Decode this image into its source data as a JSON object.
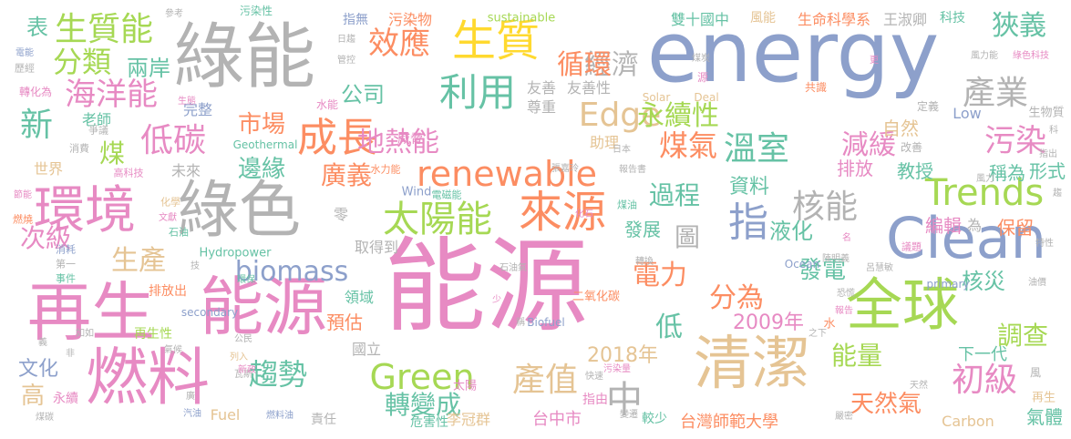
{
  "palette": {
    "pink": "#e78ac3",
    "green": "#a6d854",
    "blue": "#8da0cb",
    "gray": "#b3b3b3",
    "orange": "#fc8d62",
    "yellow": "#ffd92f",
    "tan": "#e5c494",
    "teal": "#66c2a5"
  },
  "words": [
    {
      "text": "能源",
      "color": "#e78ac3"
    },
    {
      "text": "energy",
      "color": "#8da0cb"
    },
    {
      "text": "綠能",
      "color": "#b3b3b3"
    },
    {
      "text": "再生",
      "color": "#e78ac3"
    },
    {
      "text": "能源",
      "color": "#e78ac3"
    },
    {
      "text": "燃料",
      "color": "#e78ac3"
    },
    {
      "text": "綠色",
      "color": "#b3b3b3"
    },
    {
      "text": "環境",
      "color": "#e78ac3"
    },
    {
      "text": "Clean",
      "color": "#8da0cb"
    },
    {
      "text": "清潔",
      "color": "#e5c494"
    },
    {
      "text": "全球",
      "color": "#a6d854"
    },
    {
      "text": "生質",
      "color": "#ffd92f"
    },
    {
      "text": "來源",
      "color": "#fc8d62"
    },
    {
      "text": "renewable",
      "color": "#fc8d62"
    },
    {
      "text": "Trends",
      "color": "#a6d854"
    },
    {
      "text": "Green",
      "color": "#a6d854"
    },
    {
      "text": "biomass",
      "color": "#8da0cb"
    },
    {
      "text": "成長",
      "color": "#fc8d62"
    },
    {
      "text": "利用",
      "color": "#66c2a5"
    },
    {
      "text": "太陽能",
      "color": "#a6d854"
    },
    {
      "text": "生質能",
      "color": "#a6d854"
    },
    {
      "text": "海洋能",
      "color": "#e78ac3"
    },
    {
      "text": "分類",
      "color": "#a6d854"
    },
    {
      "text": "效應",
      "color": "#fc8d62"
    },
    {
      "text": "低碳",
      "color": "#e78ac3"
    },
    {
      "text": "產業",
      "color": "#b3b3b3"
    },
    {
      "text": "狹義",
      "color": "#66c2a5"
    },
    {
      "text": "污染",
      "color": "#e78ac3"
    },
    {
      "text": "溫室",
      "color": "#66c2a5"
    },
    {
      "text": "Edge",
      "color": "#e5c494"
    },
    {
      "text": "地熱能",
      "color": "#e78ac3"
    },
    {
      "text": "核能",
      "color": "#b3b3b3"
    },
    {
      "text": "減緩",
      "color": "#e78ac3"
    },
    {
      "text": "產值",
      "color": "#e5c494"
    },
    {
      "text": "初級",
      "color": "#e78ac3"
    },
    {
      "text": "趨勢",
      "color": "#66c2a5"
    },
    {
      "text": "天然氣",
      "color": "#fc8d62"
    },
    {
      "text": "調查",
      "color": "#a6d854"
    },
    {
      "text": "能量",
      "color": "#a6d854"
    },
    {
      "text": "經濟",
      "color": "#b3b3b3"
    },
    {
      "text": "循環",
      "color": "#fc8d62"
    },
    {
      "text": "永續性",
      "color": "#a6d854"
    },
    {
      "text": "煤氣",
      "color": "#fc8d62"
    },
    {
      "text": "廣義",
      "color": "#fc8d62"
    },
    {
      "text": "市場",
      "color": "#fc8d62"
    },
    {
      "text": "邊緣",
      "color": "#66c2a5"
    },
    {
      "text": "過程",
      "color": "#66c2a5"
    },
    {
      "text": "分為",
      "color": "#fc8d62"
    },
    {
      "text": "電力",
      "color": "#fc8d62"
    },
    {
      "text": "轉變成",
      "color": "#66c2a5"
    },
    {
      "text": "公司",
      "color": "#66c2a5"
    },
    {
      "text": "新",
      "color": "#66c2a5"
    },
    {
      "text": "煤",
      "color": "#a6d854"
    },
    {
      "text": "中",
      "color": "#b3b3b3"
    },
    {
      "text": "指",
      "color": "#8da0cb"
    },
    {
      "text": "生產",
      "color": "#e5c494"
    },
    {
      "text": "次級",
      "color": "#e78ac3"
    },
    {
      "text": "兩岸",
      "color": "#66c2a5"
    },
    {
      "text": "表",
      "color": "#66c2a5"
    },
    {
      "text": "高",
      "color": "#e5c494"
    },
    {
      "text": "文化",
      "color": "#8da0cb"
    },
    {
      "text": "液化",
      "color": "#66c2a5"
    },
    {
      "text": "發電",
      "color": "#66c2a5"
    },
    {
      "text": "核災",
      "color": "#66c2a5"
    },
    {
      "text": "2009年",
      "color": "#e78ac3"
    },
    {
      "text": "2018年",
      "color": "#e5c494"
    },
    {
      "text": "低",
      "color": "#66c2a5"
    },
    {
      "text": "圖",
      "color": "#b3b3b3"
    },
    {
      "text": "發展",
      "color": "#66c2a5"
    },
    {
      "text": "資料",
      "color": "#66c2a5"
    },
    {
      "text": "預估",
      "color": "#fc8d62"
    },
    {
      "text": "Fuel",
      "color": "#e5c494"
    },
    {
      "text": "Carbon",
      "color": "#e5c494"
    },
    {
      "text": "Low",
      "color": "#8da0cb"
    },
    {
      "text": "自然",
      "color": "#e5c494"
    },
    {
      "text": "教授",
      "color": "#66c2a5"
    },
    {
      "text": "排放",
      "color": "#e78ac3"
    },
    {
      "text": "稱為",
      "color": "#66c2a5"
    },
    {
      "text": "形式",
      "color": "#66c2a5"
    },
    {
      "text": "編輯",
      "color": "#e78ac3"
    },
    {
      "text": "保留",
      "color": "#fc8d62"
    },
    {
      "text": "為",
      "color": "#b3b3b3"
    },
    {
      "text": "氣體",
      "color": "#66c2a5"
    },
    {
      "text": "下一代",
      "color": "#66c2a5"
    },
    {
      "text": "台灣師範大學",
      "color": "#fc8d62"
    },
    {
      "text": "台中市",
      "color": "#e78ac3"
    },
    {
      "text": "李冠群",
      "color": "#e5c494"
    },
    {
      "text": "雙十國中",
      "color": "#66c2a5"
    },
    {
      "text": "生命科學系",
      "color": "#fc8d62"
    },
    {
      "text": "王淑卿",
      "color": "#b3b3b3"
    },
    {
      "text": "科技",
      "color": "#66c2a5"
    },
    {
      "text": "風能",
      "color": "#e5c494"
    },
    {
      "text": "sustainable",
      "color": "#a6d854"
    },
    {
      "text": "污染物",
      "color": "#fc8d62"
    },
    {
      "text": "指無",
      "color": "#8da0cb"
    },
    {
      "text": "污染性",
      "color": "#66c2a5"
    },
    {
      "text": "世界",
      "color": "#e5c494"
    },
    {
      "text": "老師",
      "color": "#66c2a5"
    },
    {
      "text": "未來",
      "color": "#b3b3b3"
    },
    {
      "text": "完整",
      "color": "#8da0cb"
    },
    {
      "text": "水能",
      "color": "#e78ac3"
    },
    {
      "text": "助理",
      "color": "#e5c494"
    },
    {
      "text": "尊重",
      "color": "#b3b3b3"
    },
    {
      "text": "友善",
      "color": "#b3b3b3"
    },
    {
      "text": "友善性",
      "color": "#b3b3b3"
    },
    {
      "text": "威脅",
      "color": "#e78ac3"
    },
    {
      "text": "取得到",
      "color": "#b3b3b3"
    },
    {
      "text": "排放出",
      "color": "#fc8d62"
    },
    {
      "text": "領域",
      "color": "#66c2a5"
    },
    {
      "text": "國立",
      "color": "#b3b3b3"
    },
    {
      "text": "危害性",
      "color": "#66c2a5"
    },
    {
      "text": "太陽",
      "color": "#e78ac3"
    },
    {
      "text": "較少",
      "color": "#66c2a5"
    },
    {
      "text": "指由",
      "color": "#e78ac3"
    },
    {
      "text": "二氧化碳",
      "color": "#fc8d62"
    },
    {
      "text": "再生性",
      "color": "#a6d854"
    },
    {
      "text": "永續",
      "color": "#e78ac3"
    },
    {
      "text": "責任",
      "color": "#b3b3b3"
    },
    {
      "text": "Solar",
      "color": "#e5c494"
    },
    {
      "text": "Deal",
      "color": "#e5c494"
    },
    {
      "text": "Geothermal",
      "color": "#66c2a5"
    },
    {
      "text": "Wind",
      "color": "#8da0cb"
    },
    {
      "text": "Hydropower",
      "color": "#66c2a5"
    },
    {
      "text": "Biofuel",
      "color": "#8da0cb"
    },
    {
      "text": "secondary",
      "color": "#8da0cb"
    },
    {
      "text": "primary",
      "color": "#8da0cb"
    },
    {
      "text": "Ocean",
      "color": "#8da0cb"
    },
    {
      "text": "零",
      "color": "#b3b3b3"
    },
    {
      "text": "生物質",
      "color": "#b3b3b3"
    },
    {
      "text": "定義",
      "color": "#b3b3b3"
    },
    {
      "text": "共識",
      "color": "#fc8d62"
    },
    {
      "text": "改善",
      "color": "#b3b3b3"
    },
    {
      "text": "電磁能",
      "color": "#66c2a5"
    },
    {
      "text": "煤油",
      "color": "#66c2a5"
    },
    {
      "text": "張嘉玲",
      "color": "#b3b3b3"
    },
    {
      "text": "報告書",
      "color": "#b3b3b3"
    },
    {
      "text": "化石",
      "color": "#e78ac3"
    },
    {
      "text": "高科技",
      "color": "#e78ac3"
    },
    {
      "text": "水力能",
      "color": "#fc8d62"
    },
    {
      "text": "日本",
      "color": "#b3b3b3"
    },
    {
      "text": "消費",
      "color": "#b3b3b3"
    },
    {
      "text": "爭議",
      "color": "#b3b3b3"
    },
    {
      "text": "化學",
      "color": "#e5c494"
    },
    {
      "text": "文獻",
      "color": "#e78ac3"
    },
    {
      "text": "石油",
      "color": "#66c2a5"
    },
    {
      "text": "消耗",
      "color": "#8da0cb"
    },
    {
      "text": "第一",
      "color": "#b3b3b3"
    },
    {
      "text": "事件",
      "color": "#66c2a5"
    },
    {
      "text": "環保",
      "color": "#66c2a5"
    },
    {
      "text": "石油氣",
      "color": "#b3b3b3"
    },
    {
      "text": "陳明義",
      "color": "#b3b3b3"
    },
    {
      "text": "呂慧敏",
      "color": "#b3b3b3"
    },
    {
      "text": "議題",
      "color": "#e78ac3"
    },
    {
      "text": "特性",
      "color": "#b3b3b3"
    },
    {
      "text": "油價",
      "color": "#b3b3b3"
    },
    {
      "text": "恐慌",
      "color": "#b3b3b3"
    },
    {
      "text": "報告",
      "color": "#e78ac3"
    },
    {
      "text": "水",
      "color": "#fc8d62"
    },
    {
      "text": "污染量",
      "color": "#e78ac3"
    },
    {
      "text": "轉換",
      "color": "#b3b3b3"
    },
    {
      "text": "氣候",
      "color": "#b3b3b3"
    },
    {
      "text": "如如",
      "color": "#b3b3b3"
    },
    {
      "text": "瓦斯",
      "color": "#b3b3b3"
    },
    {
      "text": "公民",
      "color": "#b3b3b3"
    },
    {
      "text": "列入",
      "color": "#e5c494"
    },
    {
      "text": "新政",
      "color": "#e78ac3"
    },
    {
      "text": "快速",
      "color": "#b3b3b3"
    },
    {
      "text": "變遷",
      "color": "#b3b3b3"
    },
    {
      "text": "汽油",
      "color": "#8da0cb"
    },
    {
      "text": "燃料油",
      "color": "#8da0cb"
    },
    {
      "text": "煤碳",
      "color": "#b3b3b3"
    },
    {
      "text": "嚴密",
      "color": "#b3b3b3"
    },
    {
      "text": "天然",
      "color": "#b3b3b3"
    },
    {
      "text": "風",
      "color": "#b3b3b3"
    },
    {
      "text": "再生",
      "color": "#e5c494"
    },
    {
      "text": "轉化為",
      "color": "#e78ac3"
    },
    {
      "text": "歷經",
      "color": "#b3b3b3"
    },
    {
      "text": "電能",
      "color": "#8da0cb"
    },
    {
      "text": "參考",
      "color": "#b3b3b3"
    },
    {
      "text": "日趨",
      "color": "#b3b3b3"
    },
    {
      "text": "管控",
      "color": "#b3b3b3"
    },
    {
      "text": "生態",
      "color": "#e78ac3"
    },
    {
      "text": "煤炭",
      "color": "#b3b3b3"
    },
    {
      "text": "源",
      "color": "#e78ac3"
    },
    {
      "text": "更",
      "color": "#e78ac3"
    },
    {
      "text": "風力能",
      "color": "#b3b3b3"
    },
    {
      "text": "綠色科技",
      "color": "#e78ac3"
    },
    {
      "text": "科",
      "color": "#b3b3b3"
    },
    {
      "text": "指出",
      "color": "#b3b3b3"
    },
    {
      "text": "風力",
      "color": "#b3b3b3"
    },
    {
      "text": "趨",
      "color": "#b3b3b3"
    },
    {
      "text": "節能",
      "color": "#e78ac3"
    },
    {
      "text": "燃燒",
      "color": "#fc8d62"
    },
    {
      "text": "技",
      "color": "#b3b3b3"
    },
    {
      "text": "義",
      "color": "#b3b3b3"
    },
    {
      "text": "非",
      "color": "#b3b3b3"
    },
    {
      "text": "少",
      "color": "#e78ac3"
    },
    {
      "text": "稱",
      "color": "#b3b3b3"
    },
    {
      "text": "廣",
      "color": "#b3b3b3"
    },
    {
      "text": "之下",
      "color": "#b3b3b3"
    },
    {
      "text": "名",
      "color": "#e78ac3"
    }
  ]
}
